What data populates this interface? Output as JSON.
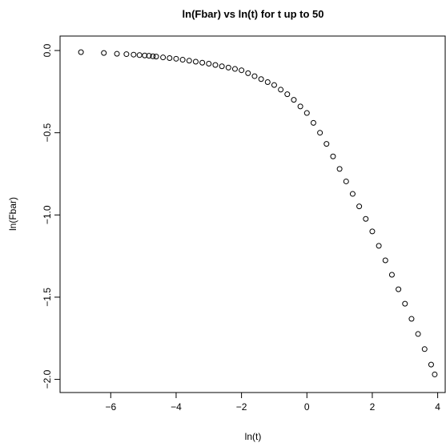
{
  "chart_data": {
    "type": "scatter",
    "title": "ln(Fbar) vs ln(t) for t up to 50",
    "x_label": "ln(t)",
    "y_label": "ln(Fbar)",
    "color": "#000000",
    "x": [
      -6.91,
      -6.21,
      -5.81,
      -5.52,
      -5.3,
      -5.12,
      -4.96,
      -4.83,
      -4.71,
      -4.61,
      -4.4,
      -4.2,
      -4.0,
      -3.8,
      -3.6,
      -3.4,
      -3.2,
      -3.0,
      -2.8,
      -2.6,
      -2.4,
      -2.2,
      -2.0,
      -1.8,
      -1.6,
      -1.4,
      -1.2,
      -1.0,
      -0.8,
      -0.6,
      -0.4,
      -0.2,
      0.0,
      0.2,
      0.4,
      0.6,
      0.8,
      1.0,
      1.2,
      1.4,
      1.6,
      1.8,
      2.0,
      2.2,
      2.4,
      2.6,
      2.8,
      3.0,
      3.2,
      3.4,
      3.6,
      3.8,
      3.91
    ],
    "values": [
      -0.01,
      -0.015,
      -0.02,
      -0.022,
      -0.025,
      -0.028,
      -0.03,
      -0.032,
      -0.035,
      -0.037,
      -0.042,
      -0.046,
      -0.05,
      -0.056,
      -0.062,
      -0.068,
      -0.074,
      -0.08,
      -0.088,
      -0.096,
      -0.104,
      -0.112,
      -0.12,
      -0.138,
      -0.156,
      -0.174,
      -0.192,
      -0.21,
      -0.238,
      -0.266,
      -0.3,
      -0.34,
      -0.38,
      -0.44,
      -0.5,
      -0.568,
      -0.644,
      -0.72,
      -0.796,
      -0.872,
      -0.948,
      -1.024,
      -1.1,
      -1.188,
      -1.276,
      -1.364,
      -1.452,
      -1.54,
      -1.632,
      -1.724,
      -1.816,
      -1.91,
      -1.97
    ],
    "xlim": [
      -7.55,
      4.23
    ],
    "ylim": [
      -2.08,
      0.088
    ],
    "xticks": [
      {
        "value": -6,
        "label": "−6"
      },
      {
        "value": -4,
        "label": "−4"
      },
      {
        "value": -2,
        "label": "−2"
      },
      0,
      2,
      4
    ],
    "yticks": [
      {
        "value": 0,
        "label": "0.0"
      },
      {
        "value": -0.5,
        "label": "−0.5"
      },
      {
        "value": -1,
        "label": "−1.0"
      },
      {
        "value": -1.5,
        "label": "−1.5"
      },
      {
        "value": -2,
        "label": "−2.0"
      }
    ]
  }
}
